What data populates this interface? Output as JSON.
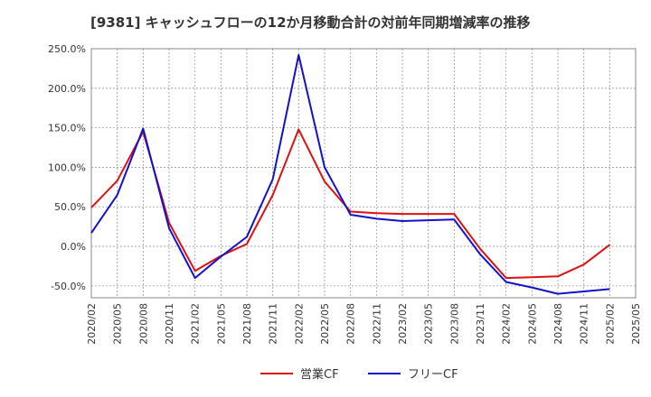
{
  "chart_data": {
    "type": "line",
    "title": "[9381]  キャッシュフローの12か月移動合計の対前年同期増減率の推移",
    "xlabel": "",
    "ylabel": "",
    "ylim": [
      -65,
      250
    ],
    "yticks": [
      250,
      200,
      150,
      100,
      50,
      0,
      -50
    ],
    "ytick_labels": [
      "250.0%",
      "200.0%",
      "150.0%",
      "100.0%",
      "50.0%",
      "0.0%",
      "-50.0%"
    ],
    "xtick_labels": [
      "2020/02",
      "2020/05",
      "2020/08",
      "2020/11",
      "2021/02",
      "2021/05",
      "2021/08",
      "2021/11",
      "2022/02",
      "2022/05",
      "2022/08",
      "2022/11",
      "2023/02",
      "2023/05",
      "2023/08",
      "2023/11",
      "2024/02",
      "2024/05",
      "2024/08",
      "2024/11",
      "2025/02",
      "2025/05"
    ],
    "grid": true,
    "legend_position": "bottom",
    "series": [
      {
        "name": "営業CF",
        "color": "#dd1111",
        "points": [
          [
            "2020/02",
            49
          ],
          [
            "2020/05",
            83
          ],
          [
            "2020/08",
            145
          ],
          [
            "2020/11",
            30
          ],
          [
            "2021/02",
            -31
          ],
          [
            "2021/05",
            -12
          ],
          [
            "2021/08",
            3
          ],
          [
            "2021/11",
            65
          ],
          [
            "2022/02",
            148
          ],
          [
            "2022/05",
            82
          ],
          [
            "2022/08",
            44
          ],
          [
            "2022/11",
            42
          ],
          [
            "2023/02",
            41
          ],
          [
            "2023/05",
            41
          ],
          [
            "2023/08",
            41
          ],
          [
            "2023/11",
            -3
          ],
          [
            "2024/02",
            -40
          ],
          [
            "2024/05",
            -39
          ],
          [
            "2024/08",
            -38
          ],
          [
            "2024/11",
            -23
          ],
          [
            "2025/02",
            2
          ]
        ]
      },
      {
        "name": "フリーCF",
        "color": "#1111cc",
        "points": [
          [
            "2020/02",
            17
          ],
          [
            "2020/05",
            65
          ],
          [
            "2020/08",
            149
          ],
          [
            "2020/11",
            23
          ],
          [
            "2021/02",
            -40
          ],
          [
            "2021/05",
            -13
          ],
          [
            "2021/08",
            12
          ],
          [
            "2021/11",
            85
          ],
          [
            "2022/02",
            242
          ],
          [
            "2022/05",
            100
          ],
          [
            "2022/08",
            40
          ],
          [
            "2022/11",
            35
          ],
          [
            "2023/02",
            32
          ],
          [
            "2023/05",
            33
          ],
          [
            "2023/08",
            34
          ],
          [
            "2023/11",
            -10
          ],
          [
            "2024/02",
            -45
          ],
          [
            "2024/05",
            -52
          ],
          [
            "2024/08",
            -60
          ],
          [
            "2024/11",
            -57
          ],
          [
            "2025/02",
            -54
          ]
        ]
      }
    ]
  }
}
